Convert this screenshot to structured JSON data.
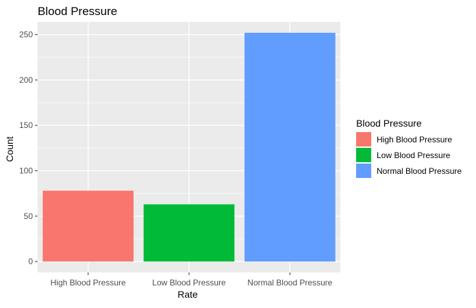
{
  "chart_data": {
    "type": "bar",
    "title": "Blood Pressure",
    "xlabel": "Rate",
    "ylabel": "Count",
    "categories": [
      "High Blood Pressure",
      "Low Blood Pressure",
      "Normal Blood Pressure"
    ],
    "values": [
      78,
      63,
      252
    ],
    "colors": [
      "#F8766D",
      "#00BA38",
      "#619CFF"
    ],
    "ylim": [
      -12,
      264
    ],
    "yticks": [
      0,
      50,
      100,
      150,
      200,
      250
    ],
    "grid": true,
    "panel_background": "#EBEBEB",
    "legend": {
      "title": "Blood Pressure",
      "placement": "right",
      "entries": [
        "High Blood Pressure",
        "Low Blood Pressure",
        "Normal Blood Pressure"
      ]
    }
  }
}
